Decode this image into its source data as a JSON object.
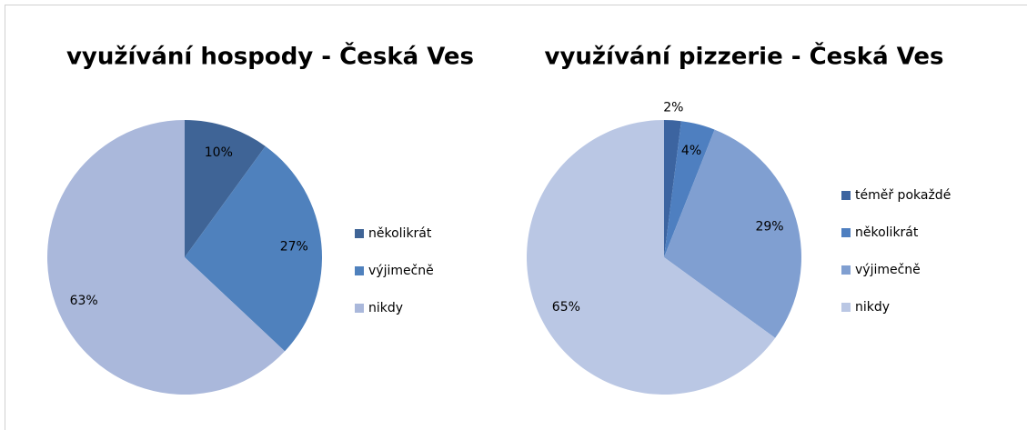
{
  "chart_data": [
    {
      "type": "pie",
      "title": "využívání hospody - Česká Ves",
      "categories": [
        "několikrát",
        "výjimečně",
        "nikdy"
      ],
      "values": [
        10,
        27,
        63
      ],
      "value_labels": [
        "10%",
        "27%",
        "63%"
      ],
      "colors": [
        "#3f6496",
        "#4f81bd",
        "#aab8db"
      ],
      "legend": "right"
    },
    {
      "type": "pie",
      "title": "využívání pizzerie - Česká Ves",
      "categories": [
        "téměř pokaždé",
        "několikrát",
        "výjimečně",
        "nikdy"
      ],
      "values": [
        2,
        4,
        29,
        65
      ],
      "value_labels": [
        "2%",
        "4%",
        "29%",
        "65%"
      ],
      "colors": [
        "#3c64a0",
        "#4e7fc0",
        "#809fd1",
        "#bac7e4"
      ],
      "legend": "right"
    }
  ]
}
